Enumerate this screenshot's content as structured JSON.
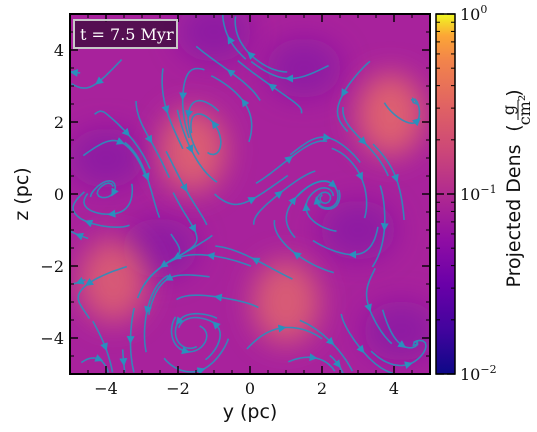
{
  "chart_data": {
    "type": "heatmap",
    "title": "",
    "annotation": "t = 7.5 Myr",
    "xlabel": "y  (pc)",
    "ylabel": "z  (pc)",
    "xlim": [
      -5,
      5
    ],
    "ylim": [
      -5,
      5
    ],
    "xticks": [
      -4,
      -2,
      0,
      2,
      4
    ],
    "xtick_labels": [
      "−4",
      "−2",
      "0",
      "2",
      "4"
    ],
    "yticks": [
      -4,
      -2,
      0,
      2,
      4
    ],
    "ytick_labels": [
      "−4",
      "−2",
      "0",
      "2",
      "4"
    ],
    "colorbar": {
      "label": "Projected Dens",
      "units_numerator": "g",
      "units_denominator": "cm²",
      "scale": "log",
      "range": [
        0.01,
        1
      ],
      "ticks": [
        {
          "value": 1,
          "base": "10",
          "exp": "0"
        },
        {
          "value": 0.1,
          "base": "10",
          "exp": "−1"
        },
        {
          "value": 0.01,
          "base": "10",
          "exp": "−2"
        }
      ],
      "colormap": "plasma"
    },
    "overlay": "velocity streamlines",
    "streamline_color": "#2a8fbd",
    "dense_regions": [
      {
        "y": 3.9,
        "z": 2.2,
        "density": 0.09
      },
      {
        "y": -1.6,
        "z": 1.2,
        "density": 0.07
      },
      {
        "y": 1.0,
        "z": -3.0,
        "density": 0.06
      },
      {
        "y": -3.8,
        "z": -2.4,
        "density": 0.055
      }
    ],
    "colors": {
      "background_field": "#a8229c",
      "dense": "#e66a6a",
      "sparse": "#7a0ca8"
    }
  }
}
